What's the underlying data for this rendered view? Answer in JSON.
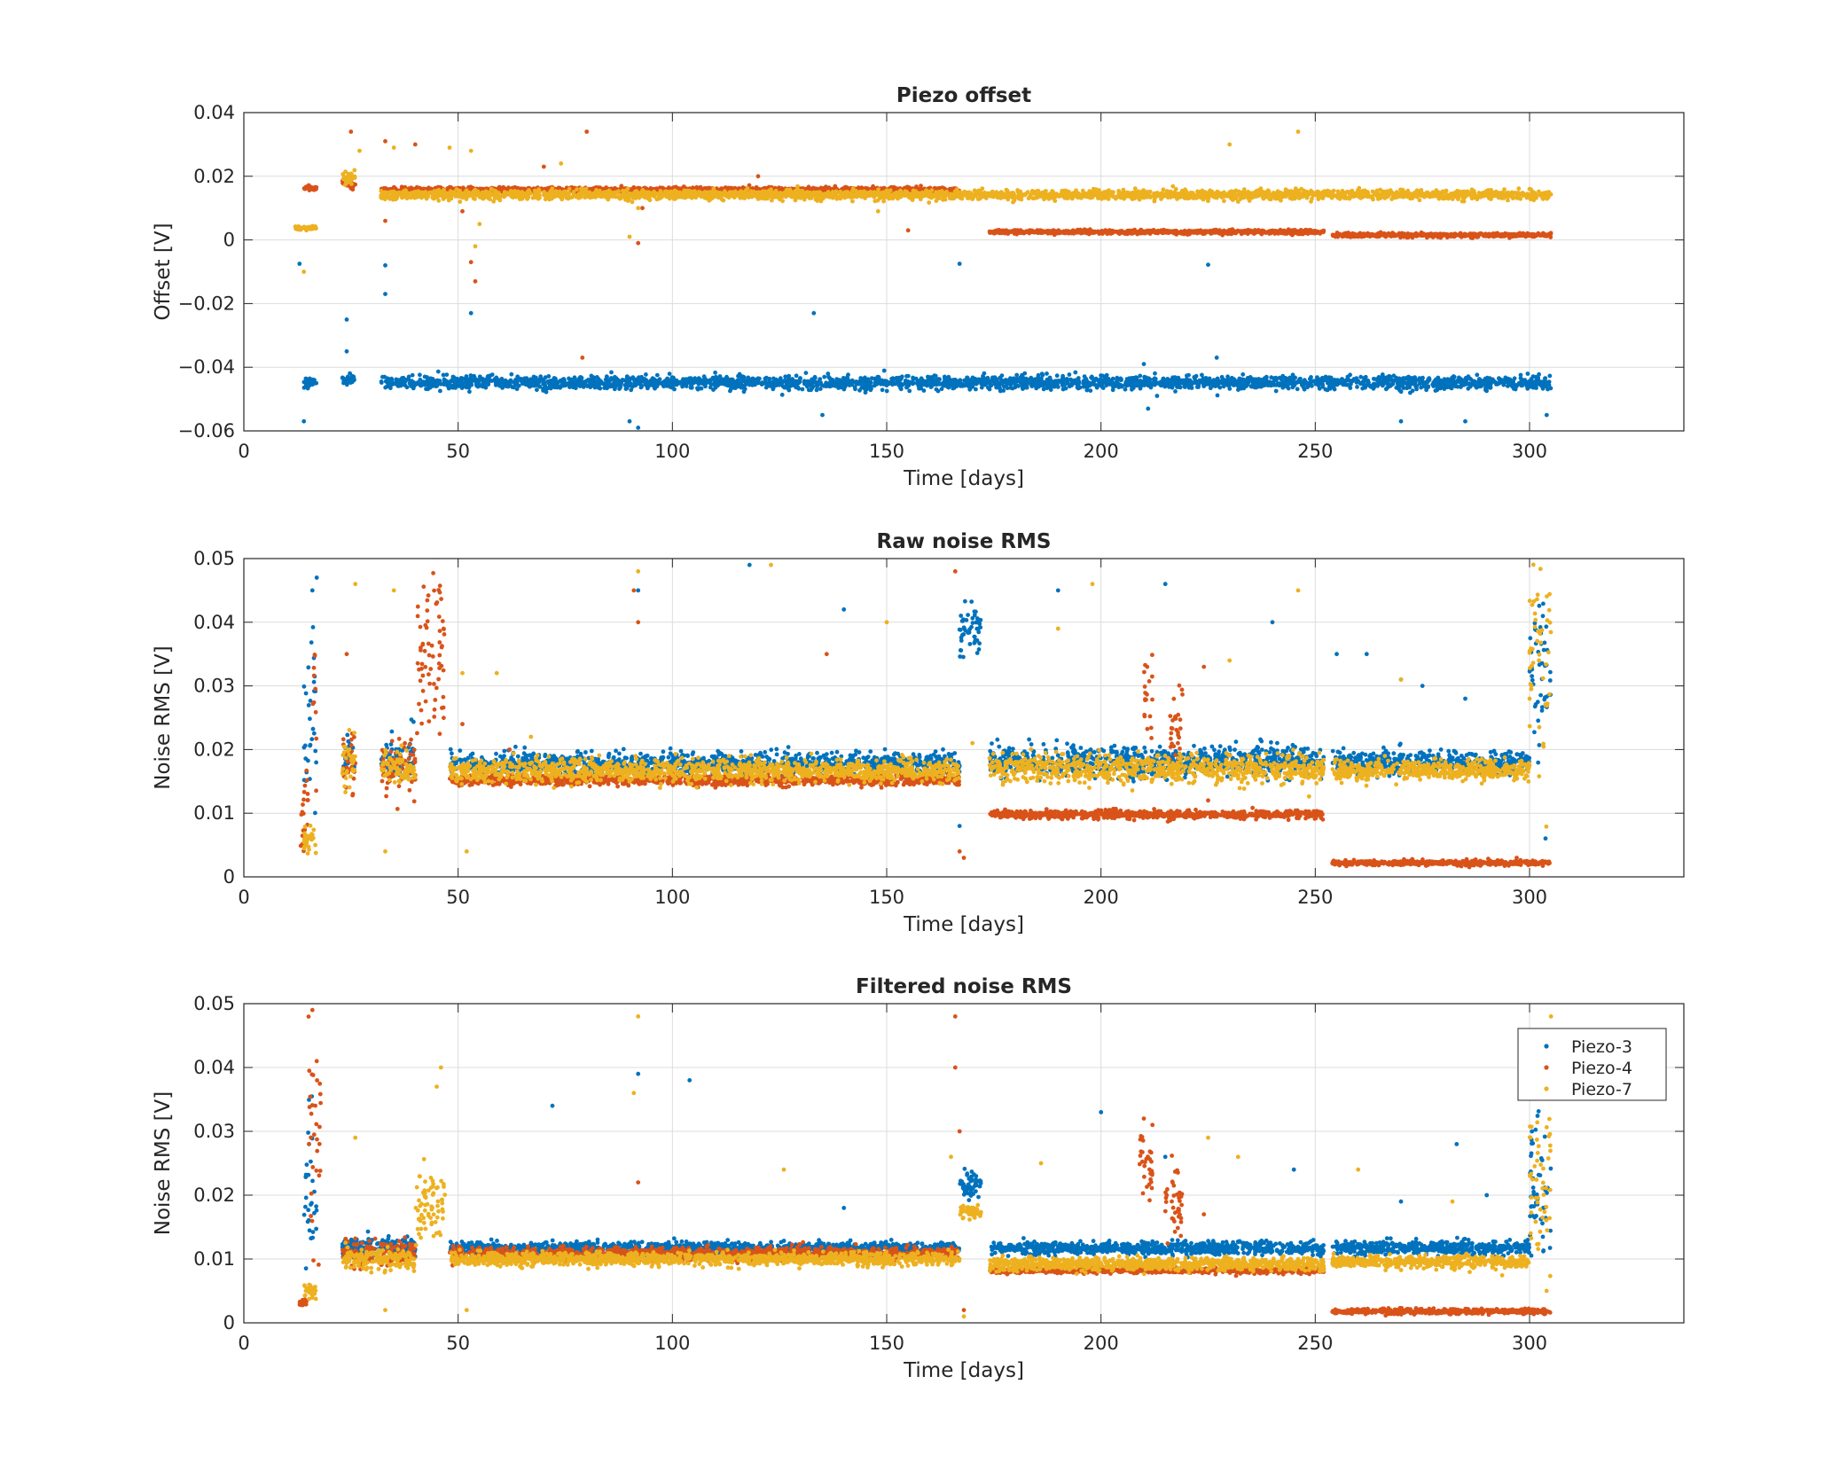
{
  "colors": {
    "Piezo-3": "#0072BD",
    "Piezo-4": "#D95319",
    "Piezo-7": "#EDB120",
    "grid": "#dcdcdc",
    "axis": "#262626"
  },
  "legend": {
    "entries": [
      "Piezo-3",
      "Piezo-4",
      "Piezo-7"
    ],
    "placement": "top-right (third subplot)"
  },
  "chart_data": [
    {
      "type": "scatter",
      "title": "Piezo offset",
      "xlabel": "Time [days]",
      "ylabel": "Offset [V]",
      "xlim": [
        0,
        336
      ],
      "ylim": [
        -0.06,
        0.04
      ],
      "xticks": [
        0,
        50,
        100,
        150,
        200,
        250,
        300
      ],
      "xtick_labels": [
        "0",
        "50",
        "100",
        "150",
        "200",
        "250",
        "300"
      ],
      "yticks": [
        -0.06,
        -0.04,
        -0.02,
        0,
        0.02,
        0.04
      ],
      "ytick_labels": [
        "−0.06",
        "−0.04",
        "−0.02",
        "0",
        "0.02",
        "0.04"
      ],
      "grid": true,
      "series": [
        {
          "name": "Piezo-3",
          "segments": [
            [
              14,
              17,
              -0.0445,
              0.0007
            ],
            [
              23,
              26,
              -0.044,
              0.0007
            ],
            [
              32,
              305,
              -0.0448,
              0.001
            ]
          ],
          "outliers": [
            [
              13,
              -0.0075
            ],
            [
              14,
              -0.057
            ],
            [
              24,
              -0.025
            ],
            [
              24,
              -0.035
            ],
            [
              33,
              -0.017
            ],
            [
              33,
              -0.008
            ],
            [
              53,
              -0.023
            ],
            [
              90,
              -0.057
            ],
            [
              92,
              -0.059
            ],
            [
              133,
              -0.023
            ],
            [
              135,
              -0.055
            ],
            [
              167,
              -0.0075
            ],
            [
              210,
              -0.039
            ],
            [
              211,
              -0.053
            ],
            [
              225,
              -0.0078
            ],
            [
              227,
              -0.037
            ],
            [
              270,
              -0.057
            ],
            [
              285,
              -0.057
            ],
            [
              304,
              -0.055
            ]
          ]
        },
        {
          "name": "Piezo-4",
          "segments": [
            [
              14,
              17,
              0.0163,
              0.0004
            ],
            [
              23,
              26,
              0.018,
              0.0012
            ],
            [
              32,
              167,
              0.0157,
              0.0004
            ],
            [
              174,
              252,
              0.0025,
              0.0003
            ],
            [
              254,
              305,
              0.0015,
              0.0003
            ]
          ],
          "outliers": [
            [
              25,
              0.034
            ],
            [
              33,
              0.031
            ],
            [
              33,
              0.006
            ],
            [
              40,
              0.03
            ],
            [
              51,
              0.009
            ],
            [
              53,
              -0.007
            ],
            [
              54,
              -0.013
            ],
            [
              70,
              0.023
            ],
            [
              80,
              0.034
            ],
            [
              79,
              -0.037
            ],
            [
              92,
              -0.001
            ],
            [
              93,
              0.01
            ],
            [
              120,
              0.02
            ],
            [
              155,
              0.003
            ]
          ]
        },
        {
          "name": "Piezo-7",
          "segments": [
            [
              12,
              17,
              0.0038,
              0.0003
            ],
            [
              23,
              26,
              0.019,
              0.0012
            ],
            [
              32,
              305,
              0.0142,
              0.0007
            ]
          ],
          "outliers": [
            [
              14,
              -0.01
            ],
            [
              27,
              0.028
            ],
            [
              35,
              0.029
            ],
            [
              48,
              0.029
            ],
            [
              53,
              0.028
            ],
            [
              54,
              -0.002
            ],
            [
              55,
              0.005
            ],
            [
              74,
              0.024
            ],
            [
              90,
              0.001
            ],
            [
              92,
              0.01
            ],
            [
              148,
              0.009
            ],
            [
              230,
              0.03
            ],
            [
              246,
              0.034
            ],
            [
              232,
              0.012
            ],
            [
              300,
              0.016
            ]
          ]
        }
      ]
    },
    {
      "type": "scatter",
      "title": "Raw noise RMS",
      "xlabel": "Time [days]",
      "ylabel": "Noise RMS [V]",
      "xlim": [
        0,
        336
      ],
      "ylim": [
        0,
        0.05
      ],
      "xticks": [
        0,
        50,
        100,
        150,
        200,
        250,
        300
      ],
      "xtick_labels": [
        "0",
        "50",
        "100",
        "150",
        "200",
        "250",
        "300"
      ],
      "yticks": [
        0,
        0.01,
        0.02,
        0.03,
        0.04,
        0.05
      ],
      "ytick_labels": [
        "0",
        "0.01",
        "0.02",
        "0.03",
        "0.04",
        "0.05"
      ],
      "grid": true,
      "series": [
        {
          "name": "Piezo-3",
          "segments": [
            [
              14,
              17,
              0.022,
              0.008
            ],
            [
              23,
              26,
              0.019,
              0.002
            ],
            [
              32,
              37,
              0.0185,
              0.0015
            ],
            [
              38,
              40,
              0.018,
              0.002
            ],
            [
              48,
              167,
              0.0178,
              0.0008
            ],
            [
              167,
              172,
              0.039,
              0.002
            ],
            [
              174,
              252,
              0.0182,
              0.0012
            ],
            [
              254,
              300,
              0.018,
              0.0009
            ],
            [
              300,
              305,
              0.03,
              0.008
            ]
          ],
          "outliers": [
            [
              16,
              0.045
            ],
            [
              17,
              0.047
            ],
            [
              92,
              0.045
            ],
            [
              118,
              0.049
            ],
            [
              140,
              0.042
            ],
            [
              190,
              0.045
            ],
            [
              215,
              0.046
            ],
            [
              240,
              0.04
            ],
            [
              270,
              0.031
            ],
            [
              275,
              0.03
            ],
            [
              255,
              0.035
            ],
            [
              262,
              0.035
            ],
            [
              285,
              0.028
            ],
            [
              167,
              0.008
            ]
          ]
        },
        {
          "name": "Piezo-4",
          "segments": [
            [
              13,
              15,
              0.01,
              0.004
            ],
            [
              16,
              17,
              0.026,
              0.006
            ],
            [
              23,
              26,
              0.018,
              0.002
            ],
            [
              32,
              40,
              0.017,
              0.002
            ],
            [
              40,
              47,
              0.036,
              0.007
            ],
            [
              48,
              167,
              0.0152,
              0.0004
            ],
            [
              174,
              252,
              0.0098,
              0.0003
            ],
            [
              210,
              212,
              0.028,
              0.004
            ],
            [
              216,
              219,
              0.023,
              0.003
            ],
            [
              254,
              305,
              0.0022,
              0.0002
            ]
          ],
          "outliers": [
            [
              24,
              0.035
            ],
            [
              51,
              0.024
            ],
            [
              62,
              0.02
            ],
            [
              91,
              0.045
            ],
            [
              92,
              0.04
            ],
            [
              136,
              0.035
            ],
            [
              166,
              0.048
            ],
            [
              167,
              0.004
            ],
            [
              168,
              0.003
            ],
            [
              224,
              0.033
            ],
            [
              225,
              0.012
            ],
            [
              297,
              0.003
            ]
          ]
        },
        {
          "name": "Piezo-7",
          "segments": [
            [
              14,
              17,
              0.006,
              0.001
            ],
            [
              23,
              26,
              0.018,
              0.002
            ],
            [
              32,
              40,
              0.0172,
              0.0012
            ],
            [
              48,
              167,
              0.0166,
              0.0009
            ],
            [
              174,
              252,
              0.017,
              0.0012
            ],
            [
              254,
              300,
              0.0168,
              0.0008
            ],
            [
              300,
              305,
              0.035,
              0.009
            ]
          ],
          "outliers": [
            [
              26,
              0.046
            ],
            [
              35,
              0.045
            ],
            [
              51,
              0.032
            ],
            [
              59,
              0.032
            ],
            [
              67,
              0.022
            ],
            [
              92,
              0.048
            ],
            [
              123,
              0.049
            ],
            [
              150,
              0.04
            ],
            [
              170,
              0.021
            ],
            [
              190,
              0.039
            ],
            [
              198,
              0.046
            ],
            [
              230,
              0.034
            ],
            [
              246,
              0.045
            ],
            [
              270,
              0.031
            ],
            [
              300,
              0.028
            ],
            [
              33,
              0.004
            ],
            [
              52,
              0.004
            ]
          ]
        }
      ]
    },
    {
      "type": "scatter",
      "title": "Filtered noise RMS",
      "xlabel": "Time [days]",
      "ylabel": "Noise RMS [V]",
      "xlim": [
        0,
        336
      ],
      "ylim": [
        0,
        0.05
      ],
      "xticks": [
        0,
        50,
        100,
        150,
        200,
        250,
        300
      ],
      "xtick_labels": [
        "0",
        "50",
        "100",
        "150",
        "200",
        "250",
        "300"
      ],
      "yticks": [
        0,
        0.01,
        0.02,
        0.03,
        0.04,
        0.05
      ],
      "ytick_labels": [
        "0",
        "0.01",
        "0.02",
        "0.03",
        "0.04",
        "0.05"
      ],
      "grid": true,
      "series": [
        {
          "name": "Piezo-3",
          "segments": [
            [
              14,
              17,
              0.021,
              0.007
            ],
            [
              23,
              40,
              0.0118,
              0.0008
            ],
            [
              48,
              167,
              0.0117,
              0.0005
            ],
            [
              167,
              172,
              0.0215,
              0.001
            ],
            [
              174,
              252,
              0.0117,
              0.0005
            ],
            [
              254,
              300,
              0.0117,
              0.0005
            ],
            [
              300,
              305,
              0.02,
              0.005
            ]
          ],
          "outliers": [
            [
              72,
              0.034
            ],
            [
              92,
              0.039
            ],
            [
              104,
              0.038
            ],
            [
              140,
              0.018
            ],
            [
              200,
              0.033
            ],
            [
              215,
              0.026
            ],
            [
              245,
              0.024
            ],
            [
              270,
              0.019
            ],
            [
              283,
              0.028
            ],
            [
              290,
              0.02
            ]
          ]
        },
        {
          "name": "Piezo-4",
          "segments": [
            [
              13,
              15,
              0.003,
              0.0003
            ],
            [
              15,
              18,
              0.028,
              0.009
            ],
            [
              23,
              40,
              0.0108,
              0.0009
            ],
            [
              48,
              167,
              0.0108,
              0.0005
            ],
            [
              174,
              252,
              0.0082,
              0.0002
            ],
            [
              209,
              212,
              0.025,
              0.003
            ],
            [
              215,
              219,
              0.019,
              0.003
            ],
            [
              254,
              305,
              0.0018,
              0.0002
            ]
          ],
          "outliers": [
            [
              16,
              0.049
            ],
            [
              17,
              0.041
            ],
            [
              92,
              0.022
            ],
            [
              166,
              0.048
            ],
            [
              166,
              0.04
            ],
            [
              167,
              0.03
            ],
            [
              168,
              0.002
            ],
            [
              224,
              0.017
            ],
            [
              210,
              0.032
            ],
            [
              212,
              0.031
            ]
          ]
        },
        {
          "name": "Piezo-7",
          "segments": [
            [
              14,
              17,
              0.0052,
              0.0008
            ],
            [
              23,
              40,
              0.01,
              0.0008
            ],
            [
              40,
              47,
              0.018,
              0.003
            ],
            [
              48,
              167,
              0.01,
              0.0005
            ],
            [
              167,
              172,
              0.0173,
              0.0006
            ],
            [
              174,
              252,
              0.0092,
              0.0005
            ],
            [
              254,
              300,
              0.0095,
              0.0005
            ],
            [
              300,
              305,
              0.022,
              0.007
            ]
          ],
          "outliers": [
            [
              26,
              0.029
            ],
            [
              46,
              0.04
            ],
            [
              45,
              0.037
            ],
            [
              92,
              0.048
            ],
            [
              91,
              0.036
            ],
            [
              126,
              0.024
            ],
            [
              165,
              0.026
            ],
            [
              186,
              0.025
            ],
            [
              225,
              0.029
            ],
            [
              232,
              0.026
            ],
            [
              260,
              0.024
            ],
            [
              282,
              0.019
            ],
            [
              305,
              0.048
            ],
            [
              52,
              0.002
            ],
            [
              33,
              0.002
            ],
            [
              168,
              0.001
            ]
          ]
        }
      ]
    }
  ]
}
